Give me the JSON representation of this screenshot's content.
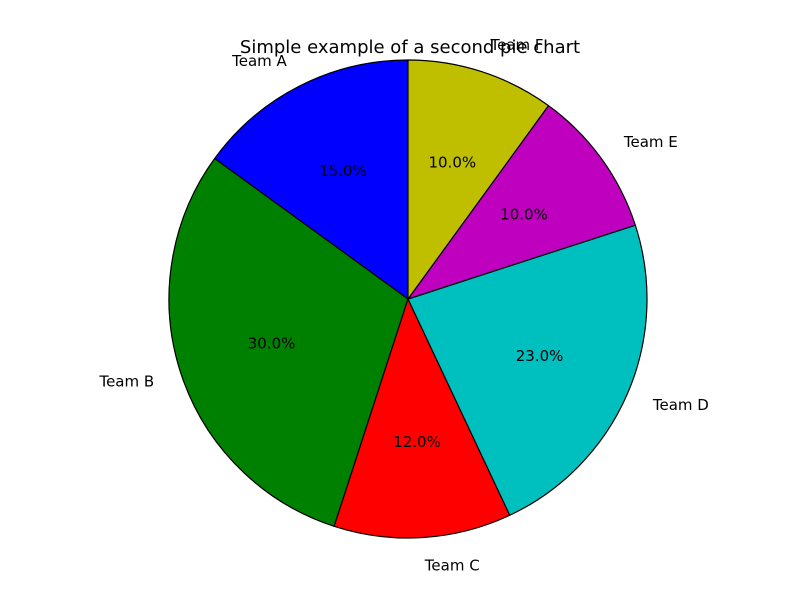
{
  "chart_data": {
    "type": "pie",
    "title": "Simple example of a second pie chart",
    "categories": [
      "Team A",
      "Team B",
      "Team C",
      "Team D",
      "Team E",
      "Team F"
    ],
    "values": [
      15,
      30,
      12,
      23,
      10,
      10
    ],
    "percent_labels": [
      "15.0%",
      "30.0%",
      "12.0%",
      "23.0%",
      "10.0%",
      "10.0%"
    ],
    "colors": [
      "#0000ff",
      "#008000",
      "#ff0000",
      "#00bfbf",
      "#bf00bf",
      "#bfbf00"
    ],
    "start_angle_deg": 90,
    "direction": "counterclockwise",
    "legend": "none"
  }
}
